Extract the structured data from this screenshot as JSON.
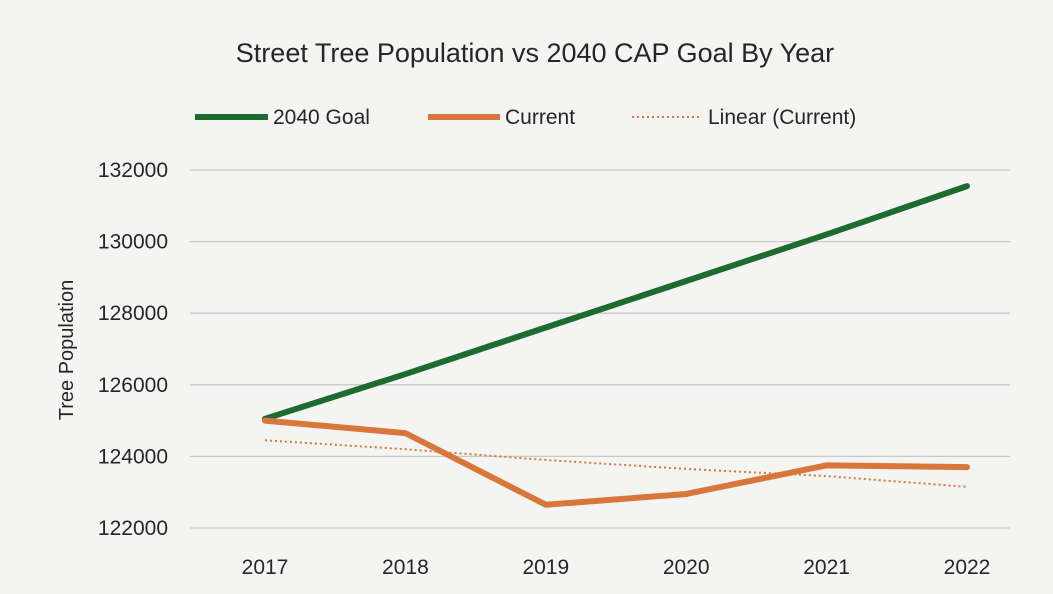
{
  "chart_data": {
    "type": "line",
    "title": "Street Tree Population vs 2040 CAP Goal By Year",
    "xlabel": "",
    "ylabel": "Tree Population",
    "categories": [
      "2017",
      "2018",
      "2019",
      "2020",
      "2021",
      "2022"
    ],
    "ylim": [
      122000,
      132000
    ],
    "yticks": [
      "122000",
      "124000",
      "126000",
      "128000",
      "130000",
      "132000"
    ],
    "grid": true,
    "legend_position": "top",
    "series": [
      {
        "name": "2040 Goal",
        "color": "#1e6b32",
        "values": [
          125050,
          126300,
          127600,
          128900,
          130200,
          131550
        ]
      },
      {
        "name": "Current",
        "color": "#d9773b",
        "values": [
          125000,
          124650,
          122650,
          122950,
          123750,
          123700
        ]
      }
    ],
    "trendline": {
      "name": "Linear (Current)",
      "color": "#d9773b",
      "style": "dotted",
      "of": "Current",
      "values": [
        124450,
        124200,
        123900,
        123650,
        123450,
        123150
      ]
    }
  }
}
